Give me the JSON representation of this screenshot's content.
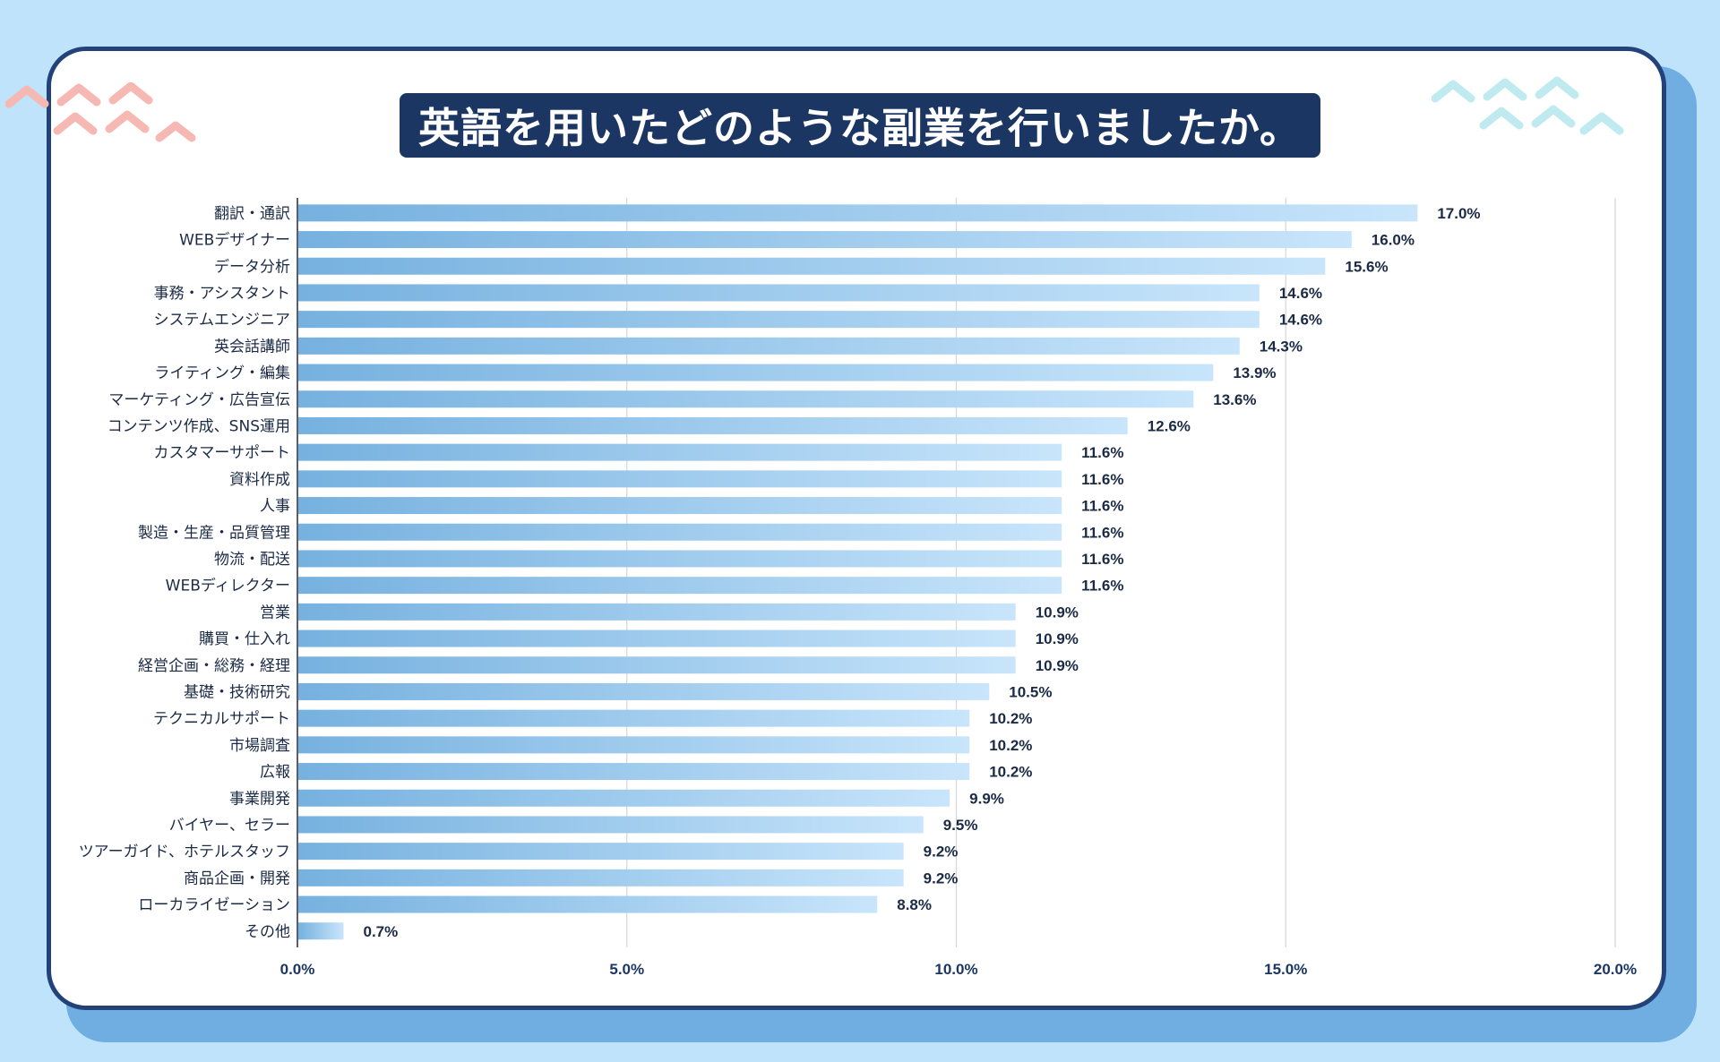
{
  "title": "英語を用いたどのような副業を行いましたか。",
  "colors": {
    "page_background": "#bfe3fb",
    "card_border": "#23427a",
    "title_background": "#1c3664",
    "bar_start": "#76b1df",
    "bar_end": "#c8e5fb",
    "deco_pink": "#f5b8b2",
    "deco_cyan": "#bfeaf0"
  },
  "chart_data": {
    "type": "bar",
    "orientation": "horizontal",
    "title": "英語を用いたどのような副業を行いましたか。",
    "xlabel": "",
    "ylabel": "",
    "xlim": [
      0,
      20
    ],
    "ticks": [
      {
        "value": 0,
        "label": "0.0%"
      },
      {
        "value": 5,
        "label": "5.0%"
      },
      {
        "value": 10,
        "label": "10.0%"
      },
      {
        "value": 15,
        "label": "15.0%"
      },
      {
        "value": 20,
        "label": "20.0%"
      }
    ],
    "grid": true,
    "categories": [
      "翻訳・通訳",
      "WEBデザイナー",
      "データ分析",
      "事務・アシスタント",
      "システムエンジニア",
      "英会話講師",
      "ライティング・編集",
      "マーケティング・広告宣伝",
      "コンテンツ作成、SNS運用",
      "カスタマーサポート",
      "資料作成",
      "人事",
      "製造・生産・品質管理",
      "物流・配送",
      "WEBディレクター",
      "営業",
      "購買・仕入れ",
      "経営企画・総務・経理",
      "基礎・技術研究",
      "テクニカルサポート",
      "市場調査",
      "広報",
      "事業開発",
      "バイヤー、セラー",
      "ツアーガイド、ホテルスタッフ",
      "商品企画・開発",
      "ローカライゼーション",
      "その他"
    ],
    "values": [
      17.0,
      16.0,
      15.6,
      14.6,
      14.6,
      14.3,
      13.9,
      13.6,
      12.6,
      11.6,
      11.6,
      11.6,
      11.6,
      11.6,
      11.6,
      10.9,
      10.9,
      10.9,
      10.5,
      10.2,
      10.2,
      10.2,
      9.9,
      9.5,
      9.2,
      9.2,
      8.8,
      0.7
    ],
    "value_labels": [
      "17.0%",
      "16.0%",
      "15.6%",
      "14.6%",
      "14.6%",
      "14.3%",
      "13.9%",
      "13.6%",
      "12.6%",
      "11.6%",
      "11.6%",
      "11.6%",
      "11.6%",
      "11.6%",
      "11.6%",
      "10.9%",
      "10.9%",
      "10.9%",
      "10.5%",
      "10.2%",
      "10.2%",
      "10.2%",
      "9.9%",
      "9.5%",
      "9.2%",
      "9.2%",
      "8.8%",
      "0.7%"
    ]
  }
}
